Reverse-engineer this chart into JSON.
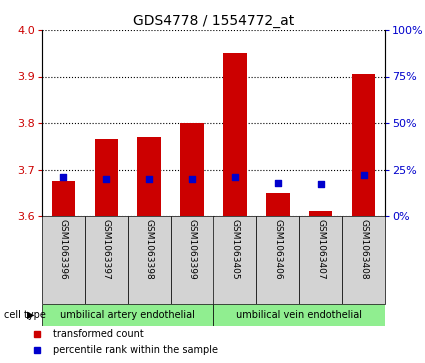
{
  "title": "GDS4778 / 1554772_at",
  "samples": [
    "GSM1063396",
    "GSM1063397",
    "GSM1063398",
    "GSM1063399",
    "GSM1063405",
    "GSM1063406",
    "GSM1063407",
    "GSM1063408"
  ],
  "transformed_count_bottom": [
    3.6,
    3.6,
    3.6,
    3.6,
    3.6,
    3.6,
    3.6,
    3.6
  ],
  "transformed_count_top": [
    3.675,
    3.765,
    3.77,
    3.8,
    3.95,
    3.65,
    3.61,
    3.905
  ],
  "percentile_rank": [
    21,
    20,
    20,
    20,
    21,
    18,
    17,
    22
  ],
  "ylim_left": [
    3.6,
    4.0
  ],
  "ylim_right": [
    0,
    100
  ],
  "yticks_left": [
    3.6,
    3.7,
    3.8,
    3.9,
    4.0
  ],
  "yticks_right": [
    0,
    25,
    50,
    75,
    100
  ],
  "ytick_labels_right": [
    "0%",
    "25%",
    "50%",
    "75%",
    "100%"
  ],
  "cell_type_groups": [
    {
      "label": "umbilical artery endothelial",
      "n_samples": 4,
      "color": "#90ee90"
    },
    {
      "label": "umbilical vein endothelial",
      "n_samples": 4,
      "color": "#90ee90"
    }
  ],
  "bar_color": "#cc0000",
  "dot_color": "#0000cc",
  "bar_width": 0.55,
  "dot_size": 22,
  "left_tick_color": "#cc0000",
  "right_tick_color": "#0000cc",
  "background_color": "#ffffff",
  "grid_color": "#000000",
  "tick_label_area_color": "#d3d3d3",
  "legend_bar_label": "transformed count",
  "legend_dot_label": "percentile rank within the sample",
  "cell_type_label": "cell type",
  "cell_type_arrow": "▶"
}
